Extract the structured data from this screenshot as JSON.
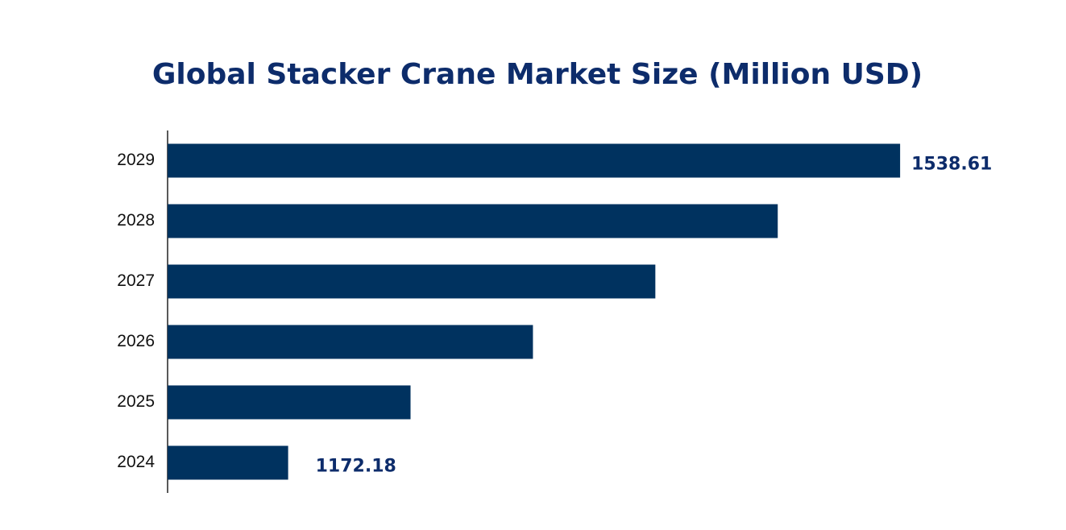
{
  "chart_data": {
    "type": "bar",
    "orientation": "horizontal",
    "title": "Global Stacker Crane Market Size (Million USD)",
    "categories": [
      "2024",
      "2025",
      "2026",
      "2027",
      "2028",
      "2029"
    ],
    "values": [
      1172.18,
      1245.47,
      1318.76,
      1392.05,
      1465.34,
      1538.61
    ],
    "color": "#00325f",
    "xlim": [
      1100,
      1540
    ]
  }
}
